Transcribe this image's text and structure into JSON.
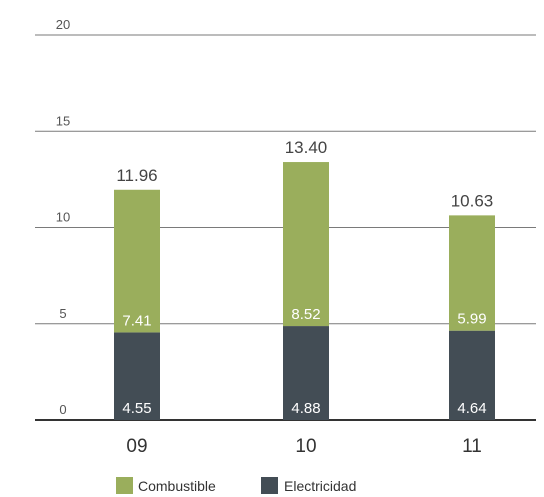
{
  "chart_data": {
    "type": "bar",
    "stacked": true,
    "categories": [
      "09",
      "10",
      "11"
    ],
    "series": [
      {
        "name": "Electricidad",
        "color": "#434d55",
        "values": [
          4.55,
          4.88,
          4.64
        ],
        "labels": [
          "4.55",
          "4.88",
          "4.64"
        ]
      },
      {
        "name": "Combustible",
        "color": "#9aae5c",
        "values": [
          7.41,
          8.52,
          5.99
        ],
        "labels": [
          "7.41",
          "8.52",
          "5.99"
        ]
      }
    ],
    "totals": [
      11.96,
      13.4,
      10.63
    ],
    "total_labels": [
      "11.96",
      "13.40",
      "10.63"
    ],
    "ylim": [
      0,
      20
    ],
    "yticks": [
      0,
      5,
      10,
      15,
      20
    ],
    "ytick_labels": [
      "0",
      "5",
      "10",
      "15",
      "20"
    ],
    "grid": true,
    "legend": {
      "position": "bottom",
      "entries": [
        "Combustible",
        "Electricidad"
      ]
    },
    "title": "",
    "xlabel": "",
    "ylabel": ""
  }
}
